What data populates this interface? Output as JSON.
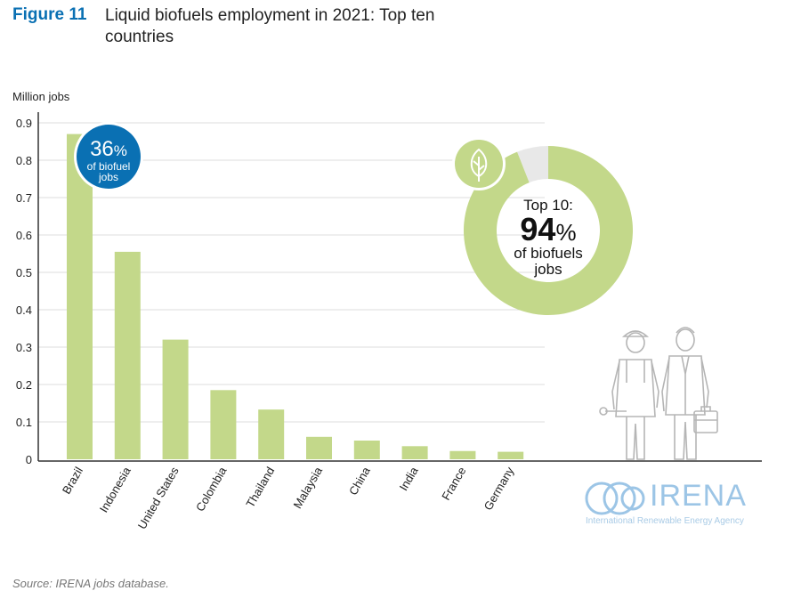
{
  "figure": {
    "label": "Figure 11",
    "title": "Liquid biofuels employment in 2021: Top ten countries"
  },
  "chart_data": {
    "type": "bar",
    "title": "Liquid biofuels employment in 2021: Top ten countries",
    "ylabel": "Million jobs",
    "xlabel": "",
    "ylim": [
      0,
      0.9
    ],
    "yticks": [
      "0",
      "0.1",
      "0.2",
      "0.3",
      "0.4",
      "0.5",
      "0.6",
      "0.7",
      "0.8",
      "0.9"
    ],
    "grid": true,
    "bar_color": "#c3d88a",
    "categories": [
      "Brazil",
      "Indonesia",
      "United States",
      "Colombia",
      "Thailand",
      "Malaysia",
      "China",
      "India",
      "France",
      "Germany"
    ],
    "values": [
      0.87,
      0.555,
      0.32,
      0.185,
      0.133,
      0.06,
      0.05,
      0.035,
      0.022,
      0.02
    ]
  },
  "callout": {
    "percent_number": "36",
    "percent_sign": "%",
    "line1": "of biofuel",
    "line2": "jobs",
    "color": "#0a70b3"
  },
  "donut": {
    "share": 0.94,
    "fill_color": "#c3d88a",
    "rest_color": "#e8e8e8",
    "line1": "Top 10:",
    "percent_number": "94",
    "percent_sign": "%",
    "line3": "of biofuels",
    "line4": "jobs",
    "icon": "leaf-icon"
  },
  "logo": {
    "name": "IRENA",
    "subtitle": "International Renewable Energy Agency",
    "color": "#9cc5e6"
  },
  "source": "Source: IRENA jobs database."
}
